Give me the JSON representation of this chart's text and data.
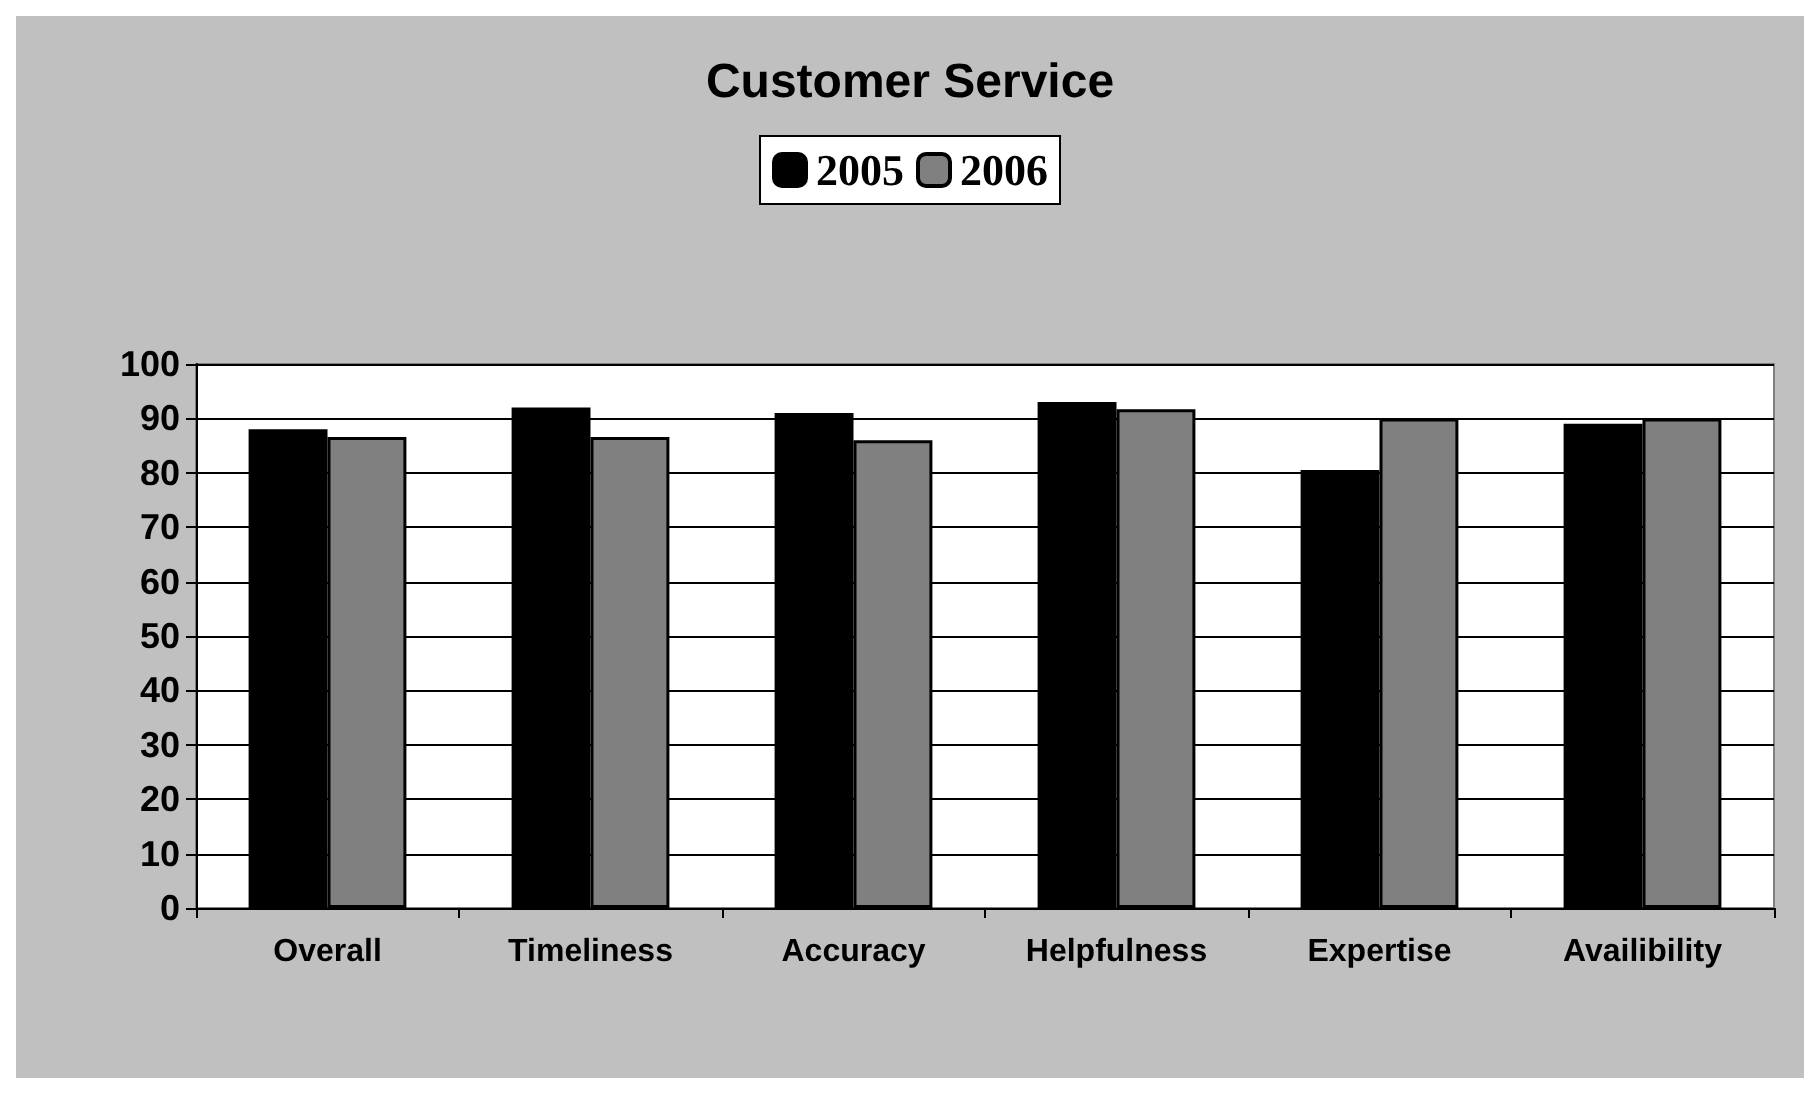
{
  "chart_data": {
    "type": "bar",
    "title": "Customer Service",
    "categories": [
      "Overall",
      "Timeliness",
      "Accuracy",
      "Helpfulness",
      "Expertise",
      "Availibility"
    ],
    "series": [
      {
        "name": "2005",
        "color": "#000000",
        "values": [
          88,
          92,
          91,
          93,
          80.5,
          89
        ]
      },
      {
        "name": "2006",
        "color": "#808080",
        "values": [
          86.6,
          86.6,
          86,
          91.7,
          90,
          90
        ]
      }
    ],
    "ylim": [
      0,
      100
    ],
    "yticks": [
      0,
      10,
      20,
      30,
      40,
      50,
      60,
      70,
      80,
      90,
      100
    ],
    "grid": "y",
    "legend": "top"
  }
}
